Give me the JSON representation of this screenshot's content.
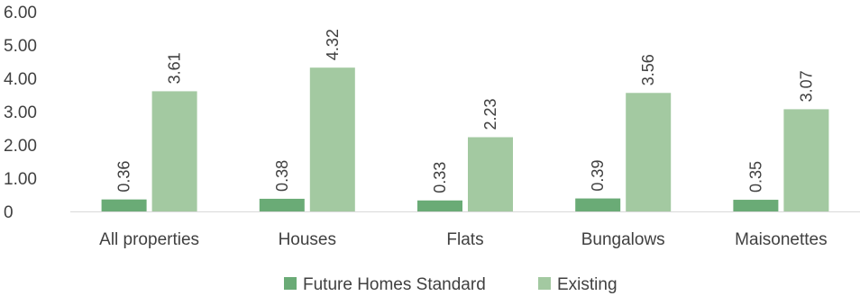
{
  "chart_data": {
    "type": "bar",
    "categories": [
      "All properties",
      "Houses",
      "Flats",
      "Bungalows",
      "Maisonettes"
    ],
    "series": [
      {
        "name": "Future Homes Standard",
        "values": [
          0.36,
          0.38,
          0.33,
          0.39,
          0.35
        ],
        "color": "#6aab76"
      },
      {
        "name": "Existing",
        "values": [
          3.61,
          4.32,
          2.23,
          3.56,
          3.07
        ],
        "color": "#a3c9a1"
      }
    ],
    "data_labels": {
      "future": [
        "0.36",
        "0.38",
        "0.33",
        "0.39",
        "0.35"
      ],
      "existing": [
        "3.61",
        "4.32",
        "2.23",
        "3.56",
        "3.07"
      ]
    },
    "y_ticks": [
      0,
      1,
      2,
      3,
      4,
      5,
      6
    ],
    "y_tick_labels": [
      "0",
      "1.00",
      "2.00",
      "3.00",
      "4.00",
      "5.00",
      "6.00"
    ],
    "ylim": [
      0,
      6
    ],
    "grid": false,
    "legend_position": "bottom",
    "axis_color": "#d9d9d9"
  }
}
